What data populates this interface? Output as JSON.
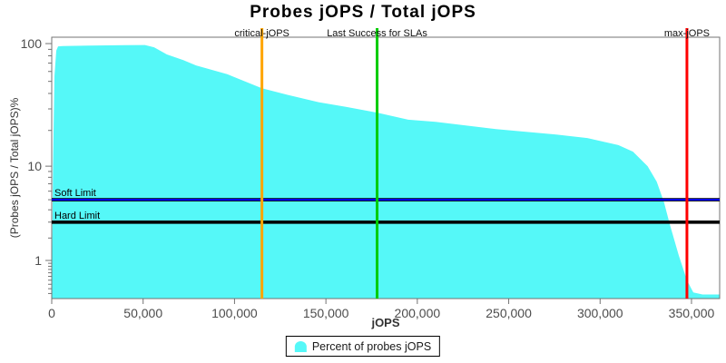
{
  "title": "Probes jOPS / Total jOPS",
  "legend": {
    "items": [
      {
        "label": "Percent of probes jOPS",
        "color": "#55F8F8"
      }
    ]
  },
  "colors": {
    "area_fill": "#55F8F8",
    "axis": "#737373",
    "tick_label": "#4d4d4d",
    "critical_marker": "#FFA500",
    "sla_marker": "#00CC00",
    "max_marker": "#FF0000",
    "soft_limit": "#0000FF",
    "hard_limit": "#000000"
  },
  "chart_data": {
    "type": "area",
    "title": "Probes jOPS / Total jOPS",
    "xlabel": "jOPS",
    "ylabel": "(Probes jOPS / Total jOPS)%",
    "grid": false,
    "legend_position": "bottom-center",
    "xlim": [
      0,
      365400
    ],
    "x_ticks": [
      0,
      50000,
      100000,
      150000,
      200000,
      250000,
      300000,
      350000
    ],
    "y_scale": "log-adjusted-zero-floor",
    "ylim": [
      0,
      112
    ],
    "y_major_ticks": [
      100,
      10,
      1
    ],
    "y_minor_ticks": [
      90,
      80,
      70,
      60,
      50,
      40,
      30,
      20,
      9,
      8,
      7,
      6,
      5,
      4,
      3,
      2,
      0.9,
      0.8,
      0.7,
      0.6,
      0.5,
      0.4,
      0.3,
      0.2,
      0.1
    ],
    "series": [
      {
        "name": "Percent of probes jOPS",
        "color": "#55F8F8",
        "points": [
          [
            0,
            0
          ],
          [
            700,
            10
          ],
          [
            1500,
            55
          ],
          [
            2500,
            88
          ],
          [
            3500,
            95
          ],
          [
            6000,
            95.5
          ],
          [
            20000,
            96.5
          ],
          [
            40000,
            97.2
          ],
          [
            51000,
            97.5
          ],
          [
            56000,
            93.5
          ],
          [
            63000,
            82
          ],
          [
            72000,
            74
          ],
          [
            79000,
            67
          ],
          [
            96000,
            57
          ],
          [
            115000,
            44
          ],
          [
            129000,
            39
          ],
          [
            146000,
            34
          ],
          [
            162000,
            31
          ],
          [
            178000,
            28
          ],
          [
            195000,
            24.5
          ],
          [
            210000,
            23.5
          ],
          [
            243000,
            20.5
          ],
          [
            276000,
            18.5
          ],
          [
            293000,
            17.3
          ],
          [
            310000,
            15.1
          ],
          [
            318000,
            13.3
          ],
          [
            326000,
            10
          ],
          [
            331000,
            7.3
          ],
          [
            335000,
            4.7
          ],
          [
            338000,
            2.9
          ],
          [
            343000,
            1.2
          ],
          [
            347500,
            0.4
          ],
          [
            351000,
            0.12
          ],
          [
            356000,
            0.08
          ],
          [
            365400,
            0.08
          ]
        ]
      }
    ],
    "vertical_markers": [
      {
        "label": "critical-jOPS",
        "x": 115000,
        "color": "#FFA500"
      },
      {
        "label": "Last Success for SLAs",
        "x": 178000,
        "color": "#00CC00"
      },
      {
        "label": "max-jOPS",
        "x": 347500,
        "color": "#FF0000"
      }
    ],
    "horizontal_markers": [
      {
        "label": "Soft Limit",
        "y": 5,
        "color": "#0000FF"
      },
      {
        "label": "Hard Limit",
        "y": 3,
        "color": "#000000"
      }
    ]
  }
}
